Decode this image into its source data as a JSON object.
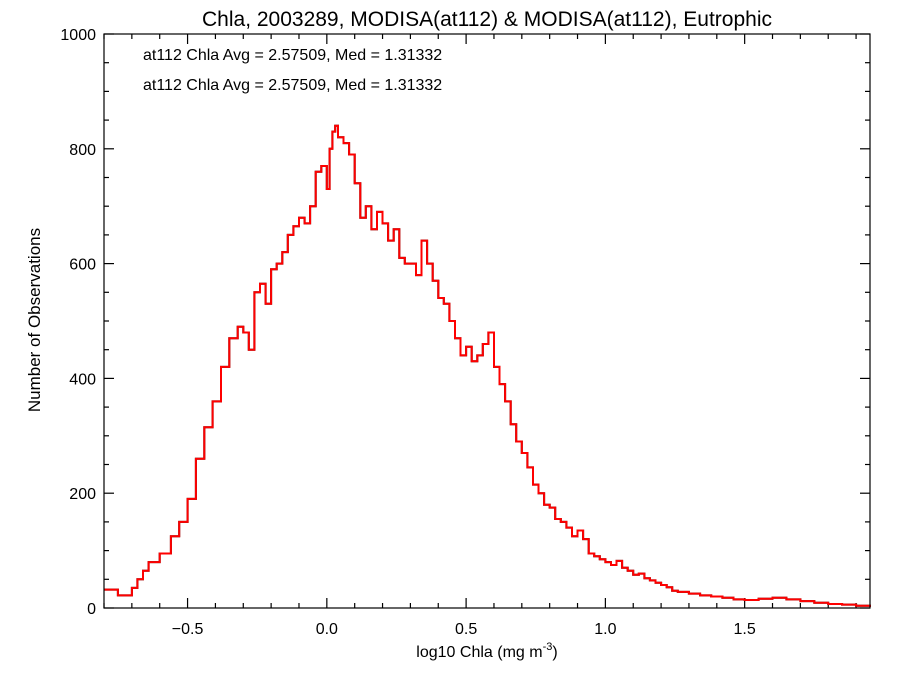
{
  "chart_data": {
    "type": "line",
    "title": "Chla, 2003289, MODISA(at112) & MODISA(at112), Eutrophic",
    "xlabel": "log10 Chla (mg m",
    "xlabel_sup": "-3",
    "xlabel_tail": ")",
    "ylabel": "Number of Observations",
    "xlim": [
      -0.8,
      1.95
    ],
    "ylim": [
      0,
      1000
    ],
    "x_ticks": [
      -0.5,
      0.0,
      0.5,
      1.0,
      1.5
    ],
    "x_tick_labels": [
      "−0.5",
      "0.0",
      "0.5",
      "1.0",
      "1.5"
    ],
    "y_ticks": [
      0,
      200,
      400,
      600,
      800,
      1000
    ],
    "y_tick_labels": [
      "0",
      "200",
      "400",
      "600",
      "800",
      "1000"
    ],
    "annotations": [
      {
        "text": "at112 Chla Avg = 2.57509, Med = 1.31332",
        "color": "#000000"
      },
      {
        "text": "at112 Chla Avg = 2.57509, Med = 1.31332",
        "color": "#ff0000"
      }
    ],
    "series": [
      {
        "color_a": "#000000",
        "color_b": "#ff0000",
        "points": [
          [
            -0.8,
            32
          ],
          [
            -0.75,
            22
          ],
          [
            -0.7,
            35
          ],
          [
            -0.68,
            50
          ],
          [
            -0.66,
            65
          ],
          [
            -0.64,
            80
          ],
          [
            -0.6,
            95
          ],
          [
            -0.56,
            125
          ],
          [
            -0.53,
            150
          ],
          [
            -0.5,
            190
          ],
          [
            -0.47,
            260
          ],
          [
            -0.44,
            315
          ],
          [
            -0.41,
            360
          ],
          [
            -0.38,
            420
          ],
          [
            -0.35,
            470
          ],
          [
            -0.32,
            490
          ],
          [
            -0.3,
            480
          ],
          [
            -0.28,
            450
          ],
          [
            -0.26,
            550
          ],
          [
            -0.24,
            565
          ],
          [
            -0.22,
            530
          ],
          [
            -0.2,
            590
          ],
          [
            -0.18,
            600
          ],
          [
            -0.16,
            620
          ],
          [
            -0.14,
            650
          ],
          [
            -0.12,
            665
          ],
          [
            -0.1,
            680
          ],
          [
            -0.08,
            670
          ],
          [
            -0.06,
            700
          ],
          [
            -0.04,
            760
          ],
          [
            -0.02,
            770
          ],
          [
            0.0,
            730
          ],
          [
            0.01,
            800
          ],
          [
            0.02,
            830
          ],
          [
            0.03,
            840
          ],
          [
            0.04,
            820
          ],
          [
            0.06,
            810
          ],
          [
            0.08,
            790
          ],
          [
            0.1,
            740
          ],
          [
            0.12,
            680
          ],
          [
            0.14,
            700
          ],
          [
            0.16,
            660
          ],
          [
            0.18,
            690
          ],
          [
            0.2,
            670
          ],
          [
            0.22,
            640
          ],
          [
            0.24,
            660
          ],
          [
            0.26,
            610
          ],
          [
            0.28,
            600
          ],
          [
            0.3,
            600
          ],
          [
            0.32,
            580
          ],
          [
            0.34,
            640
          ],
          [
            0.36,
            600
          ],
          [
            0.38,
            570
          ],
          [
            0.4,
            540
          ],
          [
            0.42,
            530
          ],
          [
            0.44,
            500
          ],
          [
            0.46,
            470
          ],
          [
            0.48,
            440
          ],
          [
            0.5,
            455
          ],
          [
            0.52,
            430
          ],
          [
            0.54,
            440
          ],
          [
            0.56,
            460
          ],
          [
            0.58,
            480
          ],
          [
            0.6,
            420
          ],
          [
            0.62,
            390
          ],
          [
            0.64,
            360
          ],
          [
            0.66,
            320
          ],
          [
            0.68,
            290
          ],
          [
            0.7,
            270
          ],
          [
            0.72,
            245
          ],
          [
            0.74,
            215
          ],
          [
            0.76,
            200
          ],
          [
            0.78,
            180
          ],
          [
            0.8,
            175
          ],
          [
            0.82,
            155
          ],
          [
            0.84,
            150
          ],
          [
            0.86,
            140
          ],
          [
            0.88,
            125
          ],
          [
            0.9,
            135
          ],
          [
            0.92,
            120
          ],
          [
            0.94,
            95
          ],
          [
            0.96,
            90
          ],
          [
            0.98,
            85
          ],
          [
            1.0,
            80
          ],
          [
            1.02,
            75
          ],
          [
            1.04,
            82
          ],
          [
            1.06,
            70
          ],
          [
            1.08,
            65
          ],
          [
            1.1,
            58
          ],
          [
            1.12,
            60
          ],
          [
            1.14,
            52
          ],
          [
            1.16,
            48
          ],
          [
            1.18,
            44
          ],
          [
            1.2,
            40
          ],
          [
            1.22,
            36
          ],
          [
            1.24,
            30
          ],
          [
            1.26,
            28
          ],
          [
            1.3,
            25
          ],
          [
            1.34,
            22
          ],
          [
            1.38,
            20
          ],
          [
            1.42,
            18
          ],
          [
            1.46,
            15
          ],
          [
            1.5,
            14
          ],
          [
            1.55,
            16
          ],
          [
            1.6,
            18
          ],
          [
            1.65,
            15
          ],
          [
            1.7,
            12
          ],
          [
            1.75,
            9
          ],
          [
            1.8,
            7
          ],
          [
            1.85,
            6
          ],
          [
            1.9,
            4
          ],
          [
            1.95,
            2
          ]
        ]
      }
    ]
  }
}
